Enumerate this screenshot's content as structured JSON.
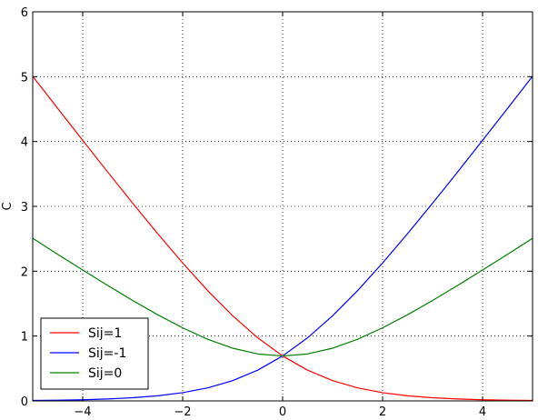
{
  "chart_data": {
    "type": "line",
    "title": "",
    "xlabel": "",
    "ylabel": "C",
    "xlim": [
      -5,
      5
    ],
    "ylim": [
      0,
      6
    ],
    "xticks": [
      -4,
      -2,
      0,
      2,
      4
    ],
    "xtick_labels": [
      "−4",
      "−2",
      "0",
      "2",
      "4"
    ],
    "yticks": [
      0,
      1,
      2,
      3,
      4,
      5,
      6
    ],
    "ytick_labels": [
      "0",
      "1",
      "2",
      "3",
      "4",
      "5",
      "6"
    ],
    "grid": true,
    "legend_position": "lower-left",
    "x": [
      -5,
      -4.5,
      -4,
      -3.5,
      -3,
      -2.5,
      -2,
      -1.5,
      -1,
      -0.5,
      0,
      0.5,
      1,
      1.5,
      2,
      2.5,
      3,
      3.5,
      4,
      4.5,
      5
    ],
    "series": [
      {
        "name": "Sij=1",
        "color": "#ff0000",
        "values": [
          5.007,
          4.511,
          4.018,
          3.53,
          3.049,
          2.579,
          2.127,
          1.701,
          1.313,
          0.974,
          0.693,
          0.474,
          0.313,
          0.201,
          0.127,
          0.079,
          0.049,
          0.03,
          0.018,
          0.011,
          0.007
        ]
      },
      {
        "name": "Sij=-1",
        "color": "#0000ff",
        "values": [
          0.007,
          0.011,
          0.018,
          0.03,
          0.049,
          0.079,
          0.127,
          0.201,
          0.313,
          0.474,
          0.693,
          0.974,
          1.313,
          1.701,
          2.127,
          2.579,
          3.049,
          3.53,
          4.018,
          4.511,
          5.007
        ]
      },
      {
        "name": "Sij=0",
        "color": "#008000",
        "values": [
          2.507,
          2.261,
          2.018,
          1.78,
          1.549,
          1.329,
          1.127,
          0.951,
          0.813,
          0.724,
          0.693,
          0.724,
          0.813,
          0.951,
          1.127,
          1.329,
          1.549,
          1.78,
          2.018,
          2.261,
          2.507
        ]
      }
    ]
  }
}
